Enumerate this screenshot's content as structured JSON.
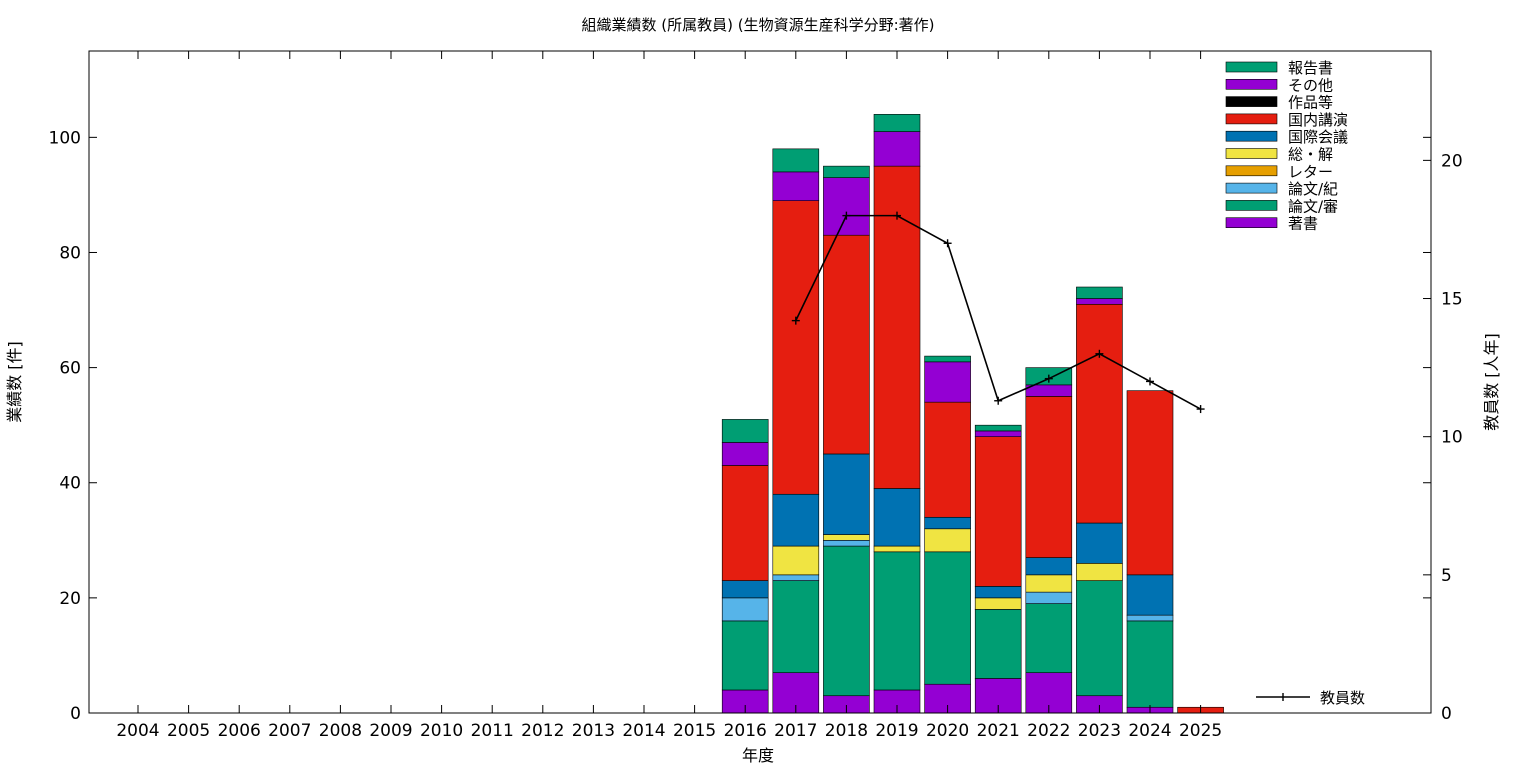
{
  "chart_data": {
    "type": "bar",
    "stacked": true,
    "title": "組織業績数 (所属教員) (生物資源生産科学分野:著作)",
    "xlabel": "年度",
    "ylabel": "業績数 [件]",
    "y2label": "教員数 [人年]",
    "categories": [
      "2004",
      "2005",
      "2006",
      "2007",
      "2008",
      "2009",
      "2010",
      "2011",
      "2012",
      "2013",
      "2014",
      "2015",
      "2016",
      "2017",
      "2018",
      "2019",
      "2020",
      "2021",
      "2022",
      "2023",
      "2024",
      "2025"
    ],
    "ylim": [
      0,
      115
    ],
    "y2lim": [
      0,
      23.958
    ],
    "yticks": [
      0,
      20,
      40,
      60,
      80,
      100
    ],
    "y2ticks": [
      0,
      5,
      10,
      15,
      20
    ],
    "grid": false,
    "legend_position": "top-right",
    "series": [
      {
        "name": "著書",
        "color": "#9400d3",
        "values": [
          0,
          0,
          0,
          0,
          0,
          0,
          0,
          0,
          0,
          0,
          0,
          0,
          4,
          7,
          3,
          4,
          5,
          6,
          7,
          3,
          1,
          0
        ]
      },
      {
        "name": "論文/審",
        "color": "#009e73",
        "values": [
          0,
          0,
          0,
          0,
          0,
          0,
          0,
          0,
          0,
          0,
          0,
          0,
          12,
          16,
          26,
          24,
          23,
          12,
          12,
          20,
          15,
          0
        ]
      },
      {
        "name": "論文/紀",
        "color": "#56b4e9",
        "values": [
          0,
          0,
          0,
          0,
          0,
          0,
          0,
          0,
          0,
          0,
          0,
          0,
          4,
          1,
          1,
          0,
          0,
          0,
          2,
          0,
          1,
          0
        ]
      },
      {
        "name": "レター",
        "color": "#e69f00",
        "values": [
          0,
          0,
          0,
          0,
          0,
          0,
          0,
          0,
          0,
          0,
          0,
          0,
          0,
          0,
          0,
          0,
          0,
          0,
          0,
          0,
          0,
          0
        ]
      },
      {
        "name": "総・解",
        "color": "#f0e442",
        "values": [
          0,
          0,
          0,
          0,
          0,
          0,
          0,
          0,
          0,
          0,
          0,
          0,
          0,
          5,
          1,
          1,
          4,
          2,
          3,
          3,
          0,
          0
        ]
      },
      {
        "name": "国際会議",
        "color": "#0072b2",
        "values": [
          0,
          0,
          0,
          0,
          0,
          0,
          0,
          0,
          0,
          0,
          0,
          0,
          3,
          9,
          14,
          10,
          2,
          2,
          3,
          7,
          7,
          0
        ]
      },
      {
        "name": "国内講演",
        "color": "#e51e10",
        "values": [
          0,
          0,
          0,
          0,
          0,
          0,
          0,
          0,
          0,
          0,
          0,
          0,
          20,
          51,
          38,
          56,
          20,
          26,
          28,
          38,
          32,
          1
        ]
      },
      {
        "name": "作品等",
        "color": "#000000",
        "values": [
          0,
          0,
          0,
          0,
          0,
          0,
          0,
          0,
          0,
          0,
          0,
          0,
          0,
          0,
          0,
          0,
          0,
          0,
          0,
          0,
          0,
          0
        ]
      },
      {
        "name": "その他",
        "color": "#9400d3",
        "values": [
          0,
          0,
          0,
          0,
          0,
          0,
          0,
          0,
          0,
          0,
          0,
          0,
          4,
          5,
          10,
          6,
          7,
          1,
          2,
          1,
          0,
          0
        ]
      },
      {
        "name": "報告書",
        "color": "#009e73",
        "values": [
          0,
          0,
          0,
          0,
          0,
          0,
          0,
          0,
          0,
          0,
          0,
          0,
          4,
          4,
          2,
          3,
          1,
          1,
          3,
          2,
          0,
          0
        ]
      }
    ],
    "line_series": {
      "name": "教員数",
      "color": "#000000",
      "x": [
        "2017",
        "2018",
        "2019",
        "2020",
        "2021",
        "2022",
        "2023",
        "2024",
        "2025"
      ],
      "values": [
        14.2,
        18.0,
        18.0,
        17.0,
        11.3,
        12.1,
        13.0,
        12.0,
        11.0
      ]
    }
  }
}
